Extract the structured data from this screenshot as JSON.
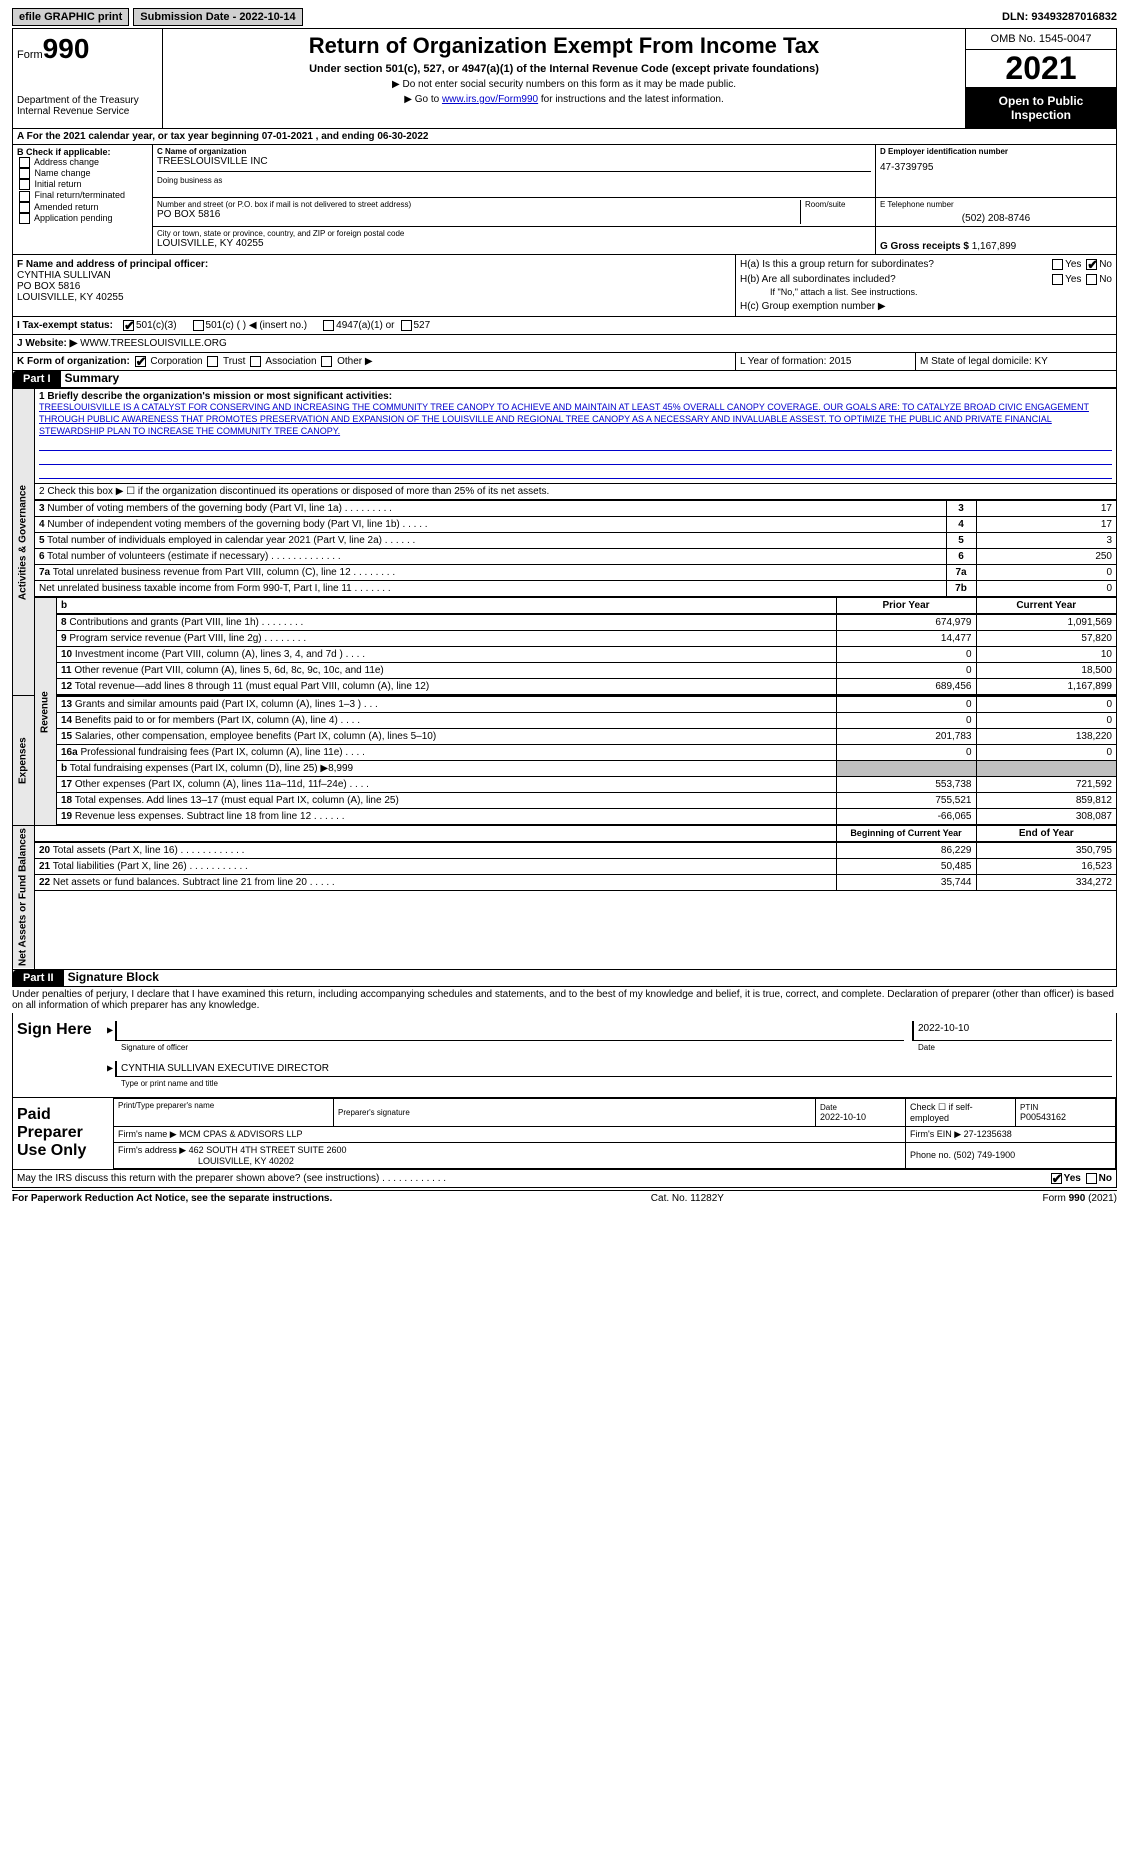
{
  "topbar": {
    "efile": "efile GRAPHIC print",
    "submission": "Submission Date - 2022-10-14",
    "dln": "DLN: 93493287016832"
  },
  "header": {
    "form_word": "Form",
    "form_num": "990",
    "dept": "Department of the Treasury",
    "irs": "Internal Revenue Service",
    "title": "Return of Organization Exempt From Income Tax",
    "subtitle": "Under section 501(c), 527, or 4947(a)(1) of the Internal Revenue Code (except private foundations)",
    "note1": "▶ Do not enter social security numbers on this form as it may be made public.",
    "note2_pre": "▶ Go to ",
    "note2_link": "www.irs.gov/Form990",
    "note2_post": " for instructions and the latest information.",
    "omb": "OMB No. 1545-0047",
    "year": "2021",
    "open": "Open to Public Inspection"
  },
  "rowA": "A For the 2021 calendar year, or tax year beginning 07-01-2021    , and ending 06-30-2022",
  "sectionB": {
    "label": "B Check if applicable:",
    "items": [
      "Address change",
      "Name change",
      "Initial return",
      "Final return/terminated",
      "Amended return",
      "Application pending"
    ]
  },
  "sectionC": {
    "name_label": "C Name of organization",
    "name": "TREESLOUISVILLE INC",
    "dba_label": "Doing business as",
    "street_label": "Number and street (or P.O. box if mail is not delivered to street address)",
    "street": "PO BOX 5816",
    "room_label": "Room/suite",
    "city_label": "City or town, state or province, country, and ZIP or foreign postal code",
    "city": "LOUISVILLE, KY  40255"
  },
  "sectionD": {
    "ein_label": "D Employer identification number",
    "ein": "47-3739795",
    "phone_label": "E Telephone number",
    "phone": "(502) 208-8746",
    "gross_label": "G Gross receipts $",
    "gross": "1,167,899"
  },
  "sectionF": {
    "label": "F  Name and address of principal officer:",
    "name": "CYNTHIA SULLIVAN",
    "street": "PO BOX 5816",
    "city": "LOUISVILLE, KY  40255"
  },
  "sectionH": {
    "ha": "H(a)  Is this a group return for subordinates?",
    "hb": "H(b)  Are all subordinates included?",
    "hb_note": "If \"No,\" attach a list. See instructions.",
    "hc": "H(c)  Group exemption number ▶",
    "yes": "Yes",
    "no": "No"
  },
  "rowI": {
    "label": "I   Tax-exempt status:",
    "opt1": "501(c)(3)",
    "opt2": "501(c) (  ) ◀ (insert no.)",
    "opt3": "4947(a)(1) or",
    "opt4": "527"
  },
  "rowJ": {
    "label": "J   Website: ▶",
    "val": "WWW.TREESLOUISVILLE.ORG"
  },
  "rowK": {
    "label": "K Form of organization:",
    "opts": [
      "Corporation",
      "Trust",
      "Association",
      "Other ▶"
    ]
  },
  "rowL": {
    "label": "L Year of formation: 2015",
    "m": "M State of legal domicile: KY"
  },
  "part1": {
    "hdr": "Part I",
    "title": "Summary",
    "line1_label": "1  Briefly describe the organization's mission or most significant activities:",
    "mission": "TREESLOUISVILLE IS A CATALYST FOR CONSERVING AND INCREASING THE COMMUNITY TREE CANOPY TO ACHIEVE AND MAINTAIN AT LEAST 45% OVERALL CANOPY COVERAGE. OUR GOALS ARE: TO CATALYZE BROAD CIVIC ENGAGEMENT THROUGH PUBLIC AWARENESS THAT PROMOTES PRESERVATION AND EXPANSION OF THE LOUISVILLE AND REGIONAL TREE CANOPY AS A NECESSARY AND INVALUABLE ASSEST. TO OPTIMIZE THE PUBLIC AND PRIVATE FINANCIAL STEWARDSHIP PLAN TO INCREASE THE COMMUNITY TREE CANOPY.",
    "line2": "2    Check this box ▶ ☐  if the organization discontinued its operations or disposed of more than 25% of its net assets.",
    "sides": {
      "gov": "Activities & Governance",
      "rev": "Revenue",
      "exp": "Expenses",
      "net": "Net Assets or Fund Balances"
    },
    "rows_single": [
      {
        "n": "3",
        "t": "Number of voting members of the governing body (Part VI, line 1a)  .  .  .  .  .  .  .  .  .",
        "k": "3",
        "v": "17"
      },
      {
        "n": "4",
        "t": "Number of independent voting members of the governing body (Part VI, line 1b)  .  .  .  .  .",
        "k": "4",
        "v": "17"
      },
      {
        "n": "5",
        "t": "Total number of individuals employed in calendar year 2021 (Part V, line 2a)  .  .  .  .  .  .",
        "k": "5",
        "v": "3"
      },
      {
        "n": "6",
        "t": "Total number of volunteers (estimate if necessary)  .  .  .  .  .  .  .  .  .  .  .  .  .",
        "k": "6",
        "v": "250"
      },
      {
        "n": "7a",
        "t": "Total unrelated business revenue from Part VIII, column (C), line 12  .  .  .  .  .  .  .  .",
        "k": "7a",
        "v": "0"
      },
      {
        "n": "",
        "t": "Net unrelated business taxable income from Form 990-T, Part I, line 11  .  .  .  .  .  .  .",
        "k": "7b",
        "v": "0"
      }
    ],
    "col_hdrs": {
      "prior": "Prior Year",
      "current": "Current Year"
    },
    "rows_rev": [
      {
        "n": "8",
        "t": "Contributions and grants (Part VIII, line 1h)  .  .  .  .  .  .  .  .",
        "p": "674,979",
        "c": "1,091,569"
      },
      {
        "n": "9",
        "t": "Program service revenue (Part VIII, line 2g)  .  .  .  .  .  .  .  .",
        "p": "14,477",
        "c": "57,820"
      },
      {
        "n": "10",
        "t": "Investment income (Part VIII, column (A), lines 3, 4, and 7d )  .  .  .  .",
        "p": "0",
        "c": "10"
      },
      {
        "n": "11",
        "t": "Other revenue (Part VIII, column (A), lines 5, 6d, 8c, 9c, 10c, and 11e)",
        "p": "0",
        "c": "18,500"
      },
      {
        "n": "12",
        "t": "Total revenue—add lines 8 through 11 (must equal Part VIII, column (A), line 12)",
        "p": "689,456",
        "c": "1,167,899"
      }
    ],
    "rows_exp": [
      {
        "n": "13",
        "t": "Grants and similar amounts paid (Part IX, column (A), lines 1–3 )  .  .  .",
        "p": "0",
        "c": "0"
      },
      {
        "n": "14",
        "t": "Benefits paid to or for members (Part IX, column (A), line 4)  .  .  .  .",
        "p": "0",
        "c": "0"
      },
      {
        "n": "15",
        "t": "Salaries, other compensation, employee benefits (Part IX, column (A), lines 5–10)",
        "p": "201,783",
        "c": "138,220"
      },
      {
        "n": "16a",
        "t": "Professional fundraising fees (Part IX, column (A), line 11e)  .  .  .  .",
        "p": "0",
        "c": "0"
      },
      {
        "n": "b",
        "t": "Total fundraising expenses (Part IX, column (D), line 25) ▶8,999",
        "p": "",
        "c": "",
        "gray": true
      },
      {
        "n": "17",
        "t": "Other expenses (Part IX, column (A), lines 11a–11d, 11f–24e)  .  .  .  .",
        "p": "553,738",
        "c": "721,592"
      },
      {
        "n": "18",
        "t": "Total expenses. Add lines 13–17 (must equal Part IX, column (A), line 25)",
        "p": "755,521",
        "c": "859,812"
      },
      {
        "n": "19",
        "t": "Revenue less expenses. Subtract line 18 from line 12  .  .  .  .  .  .",
        "p": "-66,065",
        "c": "308,087"
      }
    ],
    "col_hdrs2": {
      "beg": "Beginning of Current Year",
      "end": "End of Year"
    },
    "rows_net": [
      {
        "n": "20",
        "t": "Total assets (Part X, line 16)  .  .  .  .  .  .  .  .  .  .  .  .",
        "p": "86,229",
        "c": "350,795"
      },
      {
        "n": "21",
        "t": "Total liabilities (Part X, line 26)  .  .  .  .  .  .  .  .  .  .  .",
        "p": "50,485",
        "c": "16,523"
      },
      {
        "n": "22",
        "t": "Net assets or fund balances. Subtract line 21 from line 20  .  .  .  .  .",
        "p": "35,744",
        "c": "334,272"
      }
    ]
  },
  "part2": {
    "hdr": "Part II",
    "title": "Signature Block",
    "decl": "Under penalties of perjury, I declare that I have examined this return, including accompanying schedules and statements, and to the best of my knowledge and belief, it is true, correct, and complete. Declaration of preparer (other than officer) is based on all information of which preparer has any knowledge.",
    "sign_here": "Sign Here",
    "sig_officer": "Signature of officer",
    "sig_date": "2022-10-10",
    "date_label": "Date",
    "officer_name": "CYNTHIA SULLIVAN  EXECUTIVE DIRECTOR",
    "type_label": "Type or print name and title",
    "paid": "Paid Preparer Use Only",
    "prep_name_label": "Print/Type preparer's name",
    "prep_sig_label": "Preparer's signature",
    "prep_date": "2022-10-10",
    "self_emp": "Check ☐ if self-employed",
    "ptin_label": "PTIN",
    "ptin": "P00543162",
    "firm_name_label": "Firm's name    ▶",
    "firm_name": "MCM CPAS & ADVISORS LLP",
    "firm_ein_label": "Firm's EIN ▶",
    "firm_ein": "27-1235638",
    "firm_addr_label": "Firm's address ▶",
    "firm_addr1": "462 SOUTH 4TH STREET SUITE 2600",
    "firm_addr2": "LOUISVILLE, KY  40202",
    "firm_phone_label": "Phone no.",
    "firm_phone": "(502) 749-1900",
    "discuss": "May the IRS discuss this return with the preparer shown above? (see instructions)  .  .  .  .  .  .  .  .  .  .  .  ."
  },
  "footer": {
    "left": "For Paperwork Reduction Act Notice, see the separate instructions.",
    "mid": "Cat. No. 11282Y",
    "right": "Form 990 (2021)"
  }
}
